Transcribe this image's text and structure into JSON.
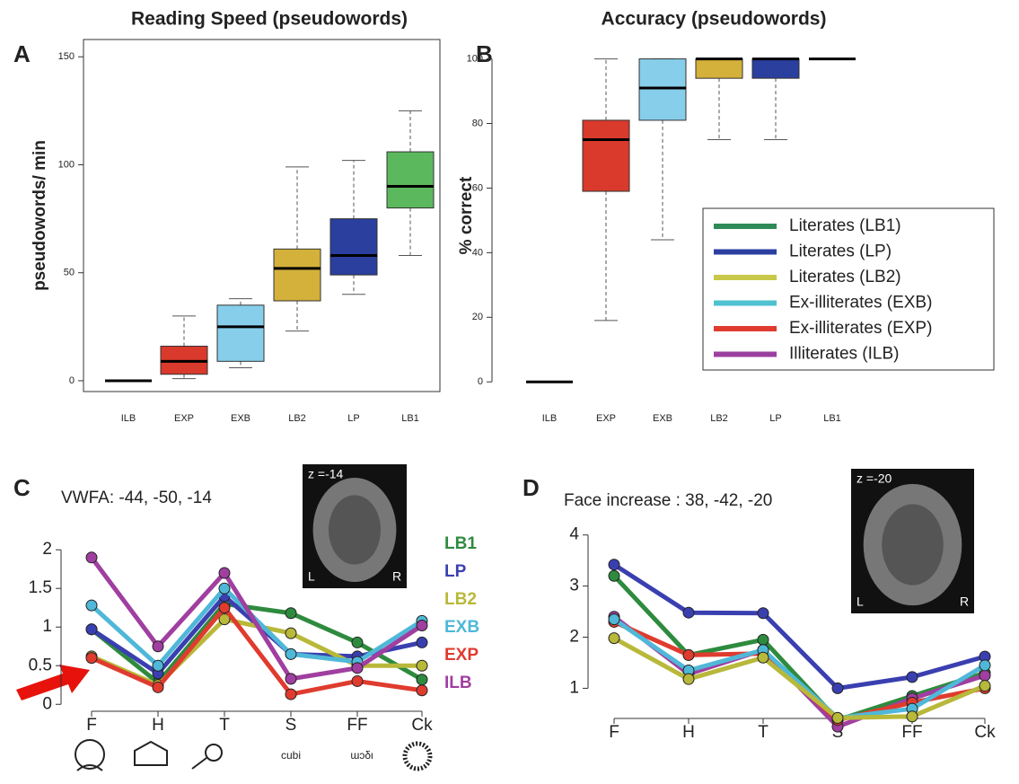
{
  "chart_data": [
    {
      "type": "box",
      "label": "A",
      "title": "Reading Speed (pseudowords)",
      "ylabel": "pseudowords/ min",
      "categories": [
        "ILB",
        "EXP",
        "EXB",
        "LB2",
        "LP",
        "LB1"
      ],
      "colors": [
        "#000000",
        "#d93a2b",
        "#87ceeb",
        "#d4b13a",
        "#2a3f9e",
        "#5cb85c"
      ],
      "min": [
        0,
        1,
        6,
        23,
        40,
        58
      ],
      "q1": [
        0,
        3,
        9,
        37,
        49,
        80
      ],
      "median": [
        0,
        9,
        25,
        52,
        58,
        90
      ],
      "q3": [
        0,
        16,
        35,
        61,
        75,
        106
      ],
      "max": [
        0,
        30,
        38,
        99,
        102,
        125
      ],
      "ylim": [
        -5,
        158
      ],
      "yticks": [
        0,
        50,
        100,
        150
      ],
      "frame": true
    },
    {
      "type": "box",
      "label": "B",
      "title": "Accuracy (pseudowords)",
      "ylabel": "% correct",
      "categories": [
        "ILB",
        "EXP",
        "EXB",
        "LB2",
        "LP",
        "LB1"
      ],
      "colors": [
        "#000000",
        "#d93a2b",
        "#87ceeb",
        "#d4b13a",
        "#2a3f9e",
        "#000000"
      ],
      "min": [
        0,
        19,
        44,
        75,
        75,
        100
      ],
      "q1": [
        0,
        59,
        81,
        94,
        94,
        100
      ],
      "median": [
        0,
        75,
        91,
        100,
        100,
        100
      ],
      "q3": [
        0,
        81,
        100,
        100,
        100,
        100
      ],
      "max": [
        0,
        100,
        100,
        100,
        100,
        100
      ],
      "ylim": [
        -3,
        106
      ],
      "yticks": [
        0,
        20,
        40,
        60,
        80,
        100
      ],
      "frame": false,
      "legend": [
        {
          "name": "Literates (LB1)",
          "color": "#2e8b57"
        },
        {
          "name": "Literates (LP)",
          "color": "#2a3fa0"
        },
        {
          "name": "Literates (LB2)",
          "color": "#c8c84a"
        },
        {
          "name": "Ex-illiterates (EXB)",
          "color": "#4fc1d0"
        },
        {
          "name": "Ex-illiterates (EXP)",
          "color": "#e03b2f"
        },
        {
          "name": "Illiterates (ILB)",
          "color": "#9b3fa0"
        }
      ]
    },
    {
      "type": "line",
      "label": "C",
      "subtitle": "VWFA: -44, -50, -14",
      "categories": [
        "F",
        "H",
        "T",
        "S",
        "FF",
        "Ck"
      ],
      "series": [
        {
          "name": "LB1",
          "color": "#2e8b3e",
          "values": [
            0.97,
            0.28,
            1.3,
            1.18,
            0.8,
            0.32
          ]
        },
        {
          "name": "LP",
          "color": "#3a3fb0",
          "values": [
            0.97,
            0.4,
            1.4,
            0.65,
            0.62,
            0.8
          ]
        },
        {
          "name": "LB2",
          "color": "#b8b83a",
          "values": [
            0.62,
            0.25,
            1.1,
            0.92,
            0.5,
            0.5
          ]
        },
        {
          "name": "EXB",
          "color": "#4fb8d8",
          "values": [
            1.28,
            0.5,
            1.5,
            0.65,
            0.55,
            1.08
          ]
        },
        {
          "name": "EXP",
          "color": "#e03b2f",
          "values": [
            0.6,
            0.22,
            1.25,
            0.13,
            0.3,
            0.18
          ]
        },
        {
          "name": "ILB",
          "color": "#a03fa0",
          "values": [
            1.9,
            0.75,
            1.7,
            0.33,
            0.47,
            1.02
          ]
        }
      ],
      "ylim": [
        -0.09,
        2.2
      ],
      "yticks": [
        0,
        0.5,
        1,
        1.5,
        2
      ],
      "inset": {
        "z": "z =-14",
        "left": "L",
        "right": "R"
      },
      "stimulus_text": "cubi"
    },
    {
      "type": "line",
      "label": "D",
      "subtitle": "Face increase : 38, -42, -20",
      "categories": [
        "F",
        "H",
        "T",
        "S",
        "FF",
        "Ck"
      ],
      "series": [
        {
          "color": "#3a3fb0",
          "values": [
            3.42,
            2.48,
            2.47,
            1.0,
            1.22,
            1.62
          ]
        },
        {
          "color": "#2e8b3e",
          "values": [
            3.2,
            1.65,
            1.95,
            0.38,
            0.85,
            1.3
          ]
        },
        {
          "color": "#a03fa0",
          "values": [
            2.4,
            1.28,
            1.75,
            0.25,
            0.8,
            1.25
          ]
        },
        {
          "color": "#e03b2f",
          "values": [
            2.3,
            1.65,
            1.68,
            0.38,
            0.72,
            1.0
          ]
        },
        {
          "color": "#4fb8d8",
          "values": [
            2.35,
            1.35,
            1.75,
            0.42,
            0.6,
            1.45
          ]
        },
        {
          "color": "#b8b83a",
          "values": [
            1.98,
            1.18,
            1.6,
            0.42,
            0.45,
            1.05
          ]
        }
      ],
      "ylim": [
        0.41,
        4.1
      ],
      "yticks": [
        1,
        2,
        3,
        4
      ],
      "inset": {
        "z": "z =-20",
        "left": "L",
        "right": "R"
      }
    }
  ]
}
